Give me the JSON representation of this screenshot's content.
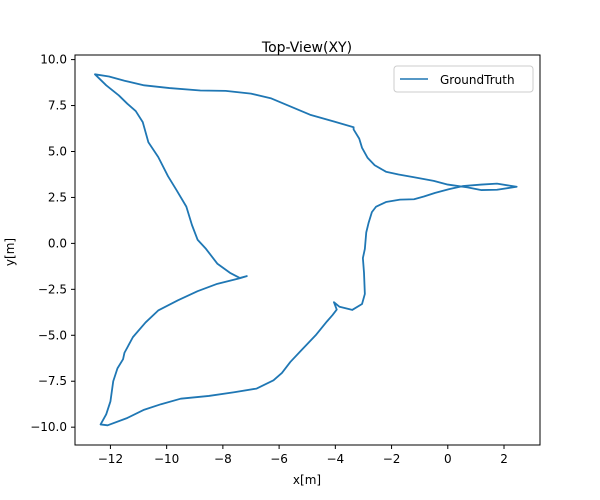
{
  "chart_data": {
    "type": "line",
    "title": "Top-View(XY)",
    "xlabel": "x[m]",
    "ylabel": "y[m]",
    "xlim": [
      -13.26,
      3.28
    ],
    "ylim": [
      -10.97,
      10.25
    ],
    "xticks": [
      -12,
      -10,
      -8,
      -6,
      -4,
      -2,
      0,
      2
    ],
    "xtick_labels": [
      "−12",
      "−10",
      "−8",
      "−6",
      "−4",
      "−2",
      "0",
      "2"
    ],
    "yticks": [
      -10.0,
      -7.5,
      -5.0,
      -2.5,
      0.0,
      2.5,
      5.0,
      7.5,
      10.0
    ],
    "ytick_labels": [
      "−10.0",
      "−7.5",
      "−5.0",
      "−2.5",
      "0.0",
      "2.5",
      "5.0",
      "7.5",
      "10.0"
    ],
    "grid": false,
    "legend_position": "top-right",
    "series": [
      {
        "name": "GroundTruth",
        "color": "#1f77b4",
        "points": [
          [
            -3.35,
            6.32
          ],
          [
            -4.05,
            6.63
          ],
          [
            -4.9,
            7.0
          ],
          [
            -5.6,
            7.45
          ],
          [
            -6.3,
            7.9
          ],
          [
            -7.0,
            8.15
          ],
          [
            -7.9,
            8.3
          ],
          [
            -8.8,
            8.32
          ],
          [
            -9.9,
            8.45
          ],
          [
            -10.8,
            8.6
          ],
          [
            -11.5,
            8.85
          ],
          [
            -12.05,
            9.08
          ],
          [
            -12.55,
            9.2
          ],
          [
            -12.15,
            8.6
          ],
          [
            -11.7,
            8.05
          ],
          [
            -11.4,
            7.6
          ],
          [
            -11.1,
            7.2
          ],
          [
            -10.85,
            6.6
          ],
          [
            -10.65,
            5.5
          ],
          [
            -10.3,
            4.7
          ],
          [
            -9.95,
            3.65
          ],
          [
            -9.65,
            2.9
          ],
          [
            -9.3,
            2.0
          ],
          [
            -9.1,
            1.0
          ],
          [
            -8.9,
            0.2
          ],
          [
            -8.6,
            -0.3
          ],
          [
            -8.2,
            -1.1
          ],
          [
            -7.75,
            -1.6
          ],
          [
            -7.4,
            -1.88
          ],
          [
            -7.15,
            -1.78
          ],
          [
            -7.4,
            -1.9
          ],
          [
            -8.2,
            -2.2
          ],
          [
            -8.9,
            -2.6
          ],
          [
            -9.6,
            -3.1
          ],
          [
            -10.3,
            -3.65
          ],
          [
            -10.75,
            -4.3
          ],
          [
            -11.2,
            -5.1
          ],
          [
            -11.5,
            -5.95
          ],
          [
            -11.55,
            -6.3
          ],
          [
            -11.75,
            -6.8
          ],
          [
            -11.9,
            -7.5
          ],
          [
            -12.0,
            -8.6
          ],
          [
            -12.15,
            -9.3
          ],
          [
            -12.35,
            -9.85
          ],
          [
            -12.1,
            -9.9
          ],
          [
            -11.4,
            -9.5
          ],
          [
            -10.8,
            -9.05
          ],
          [
            -10.2,
            -8.75
          ],
          [
            -9.5,
            -8.45
          ],
          [
            -8.5,
            -8.3
          ],
          [
            -7.6,
            -8.1
          ],
          [
            -6.8,
            -7.9
          ],
          [
            -6.2,
            -7.45
          ],
          [
            -5.9,
            -7.05
          ],
          [
            -5.6,
            -6.45
          ],
          [
            -5.2,
            -5.8
          ],
          [
            -4.7,
            -5.0
          ],
          [
            -4.3,
            -4.25
          ],
          [
            -4.1,
            -3.9
          ],
          [
            -3.95,
            -3.6
          ],
          [
            -4.05,
            -3.2
          ],
          [
            -3.85,
            -3.45
          ],
          [
            -3.4,
            -3.62
          ],
          [
            -3.05,
            -3.3
          ],
          [
            -2.95,
            -2.75
          ],
          [
            -2.98,
            -1.6
          ],
          [
            -3.02,
            -0.8
          ],
          [
            -2.95,
            -0.3
          ],
          [
            -2.9,
            0.6
          ],
          [
            -2.82,
            1.1
          ],
          [
            -2.7,
            1.7
          ],
          [
            -2.55,
            2.0
          ],
          [
            -2.2,
            2.25
          ],
          [
            -1.7,
            2.38
          ],
          [
            -1.2,
            2.4
          ],
          [
            -0.85,
            2.55
          ],
          [
            -0.45,
            2.75
          ],
          [
            0.05,
            2.95
          ],
          [
            0.55,
            3.12
          ],
          [
            1.2,
            3.2
          ],
          [
            1.75,
            3.25
          ],
          [
            2.45,
            3.08
          ],
          [
            1.75,
            2.92
          ],
          [
            1.2,
            2.9
          ],
          [
            0.7,
            3.05
          ],
          [
            0.0,
            3.2
          ],
          [
            -0.5,
            3.4
          ],
          [
            -1.2,
            3.6
          ],
          [
            -1.75,
            3.75
          ],
          [
            -2.2,
            3.9
          ],
          [
            -2.6,
            4.25
          ],
          [
            -2.85,
            4.65
          ],
          [
            -3.05,
            5.2
          ],
          [
            -3.15,
            5.7
          ],
          [
            -3.35,
            6.2
          ],
          [
            -3.35,
            6.32
          ]
        ]
      }
    ]
  }
}
